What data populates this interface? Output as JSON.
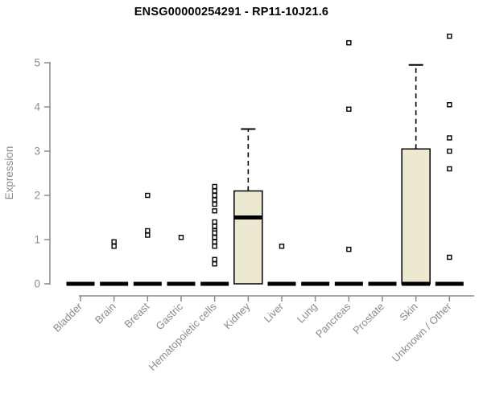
{
  "chart_data": {
    "type": "boxplot",
    "title": "ENSG00000254291 - RP11-10J21.6",
    "xlabel": "",
    "ylabel": "Expression",
    "ylim": [
      0,
      5
    ],
    "yticks": [
      0,
      1,
      2,
      3,
      4,
      5
    ],
    "grid": false,
    "legend": "none",
    "categories": [
      "Bladder",
      "Brain",
      "Breast",
      "Gastric",
      "Hematopoietic cells",
      "Kidney",
      "Liver",
      "Lung",
      "Pancreas",
      "Prostate",
      "Skin",
      "Unknown / Other"
    ],
    "boxes": [
      {
        "category": "Bladder",
        "q1": 0,
        "median": 0,
        "q3": 0,
        "whisker_low": 0,
        "whisker_high": 0,
        "outliers": []
      },
      {
        "category": "Brain",
        "q1": 0,
        "median": 0,
        "q3": 0,
        "whisker_low": 0,
        "whisker_high": 0,
        "outliers": [
          0.95,
          0.85
        ]
      },
      {
        "category": "Breast",
        "q1": 0,
        "median": 0,
        "q3": 0,
        "whisker_low": 0,
        "whisker_high": 0,
        "outliers": [
          2.0,
          1.2,
          1.1
        ]
      },
      {
        "category": "Gastric",
        "q1": 0,
        "median": 0,
        "q3": 0,
        "whisker_low": 0,
        "whisker_high": 0,
        "outliers": [
          1.05
        ]
      },
      {
        "category": "Hematopoietic cells",
        "q1": 0,
        "median": 0,
        "q3": 0,
        "whisker_low": 0,
        "whisker_high": 0,
        "outliers": [
          2.2,
          2.1,
          2.0,
          1.9,
          1.8,
          1.65,
          1.4,
          1.3,
          1.2,
          1.15,
          1.05,
          0.95,
          0.85,
          0.55,
          0.45
        ]
      },
      {
        "category": "Kidney",
        "q1": 0,
        "median": 1.5,
        "q3": 2.1,
        "whisker_low": 0,
        "whisker_high": 3.5,
        "outliers": []
      },
      {
        "category": "Liver",
        "q1": 0,
        "median": 0,
        "q3": 0,
        "whisker_low": 0,
        "whisker_high": 0,
        "outliers": [
          0.85
        ]
      },
      {
        "category": "Lung",
        "q1": 0,
        "median": 0,
        "q3": 0,
        "whisker_low": 0,
        "whisker_high": 0,
        "outliers": []
      },
      {
        "category": "Pancreas",
        "q1": 0,
        "median": 0,
        "q3": 0,
        "whisker_low": 0,
        "whisker_high": 0,
        "outliers": [
          5.45,
          3.95,
          0.78
        ]
      },
      {
        "category": "Prostate",
        "q1": 0,
        "median": 0,
        "q3": 0,
        "whisker_low": 0,
        "whisker_high": 0,
        "outliers": []
      },
      {
        "category": "Skin",
        "q1": 0,
        "median": 0,
        "q3": 3.05,
        "whisker_low": 0,
        "whisker_high": 4.95,
        "outliers": []
      },
      {
        "category": "Unknown / Other",
        "q1": 0,
        "median": 0,
        "q3": 0,
        "whisker_low": 0,
        "whisker_high": 0,
        "outliers": [
          5.6,
          4.05,
          3.3,
          3.0,
          2.6,
          0.6
        ]
      }
    ],
    "colors": {
      "box_fill": "#EDE8D0",
      "box_border": "#000000",
      "median": "#000000",
      "whisker": "#000000",
      "outlier_stroke": "#000000",
      "outlier_fill": "#FFFFFF",
      "axis": "#8B8B8B",
      "tick_label": "#8B8B8B",
      "title": "#000000",
      "background": "#FFFFFF"
    }
  }
}
